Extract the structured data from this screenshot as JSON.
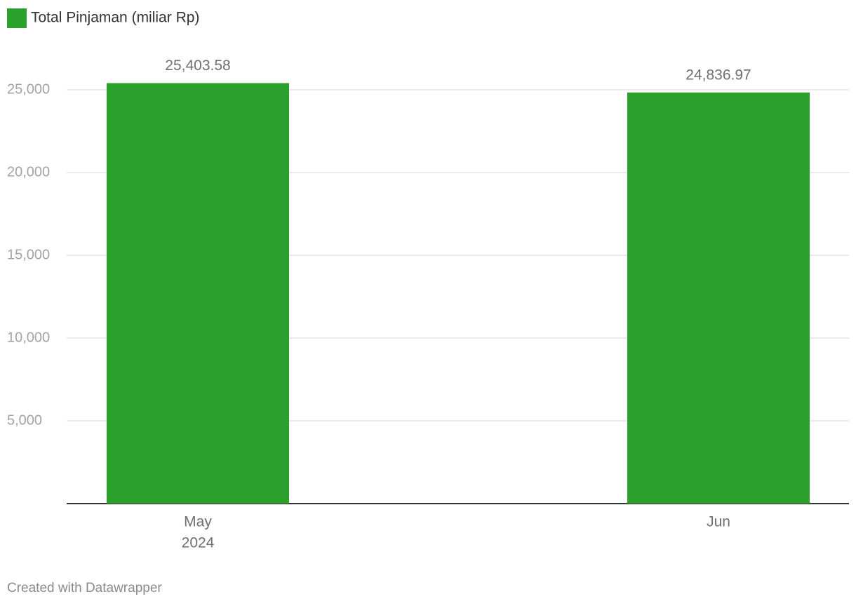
{
  "chart_data": {
    "type": "bar",
    "legend": "Total Pinjaman (miliar Rp)",
    "categories": [
      "May",
      "Jun"
    ],
    "x_sublabels": [
      "2024",
      null
    ],
    "values": [
      25403.58,
      24836.97
    ],
    "value_labels": [
      "25,403.58",
      "24,836.97"
    ],
    "color": "#2ca02c",
    "ylim": [
      0,
      25000
    ],
    "yticks": [
      {
        "value": 5000,
        "label": "5,000"
      },
      {
        "value": 10000,
        "label": "10,000"
      },
      {
        "value": 15000,
        "label": "15,000"
      },
      {
        "value": 20000,
        "label": "20,000"
      },
      {
        "value": 25000,
        "label": "25,000"
      }
    ],
    "grid": true,
    "footer": "Created with Datawrapper"
  }
}
